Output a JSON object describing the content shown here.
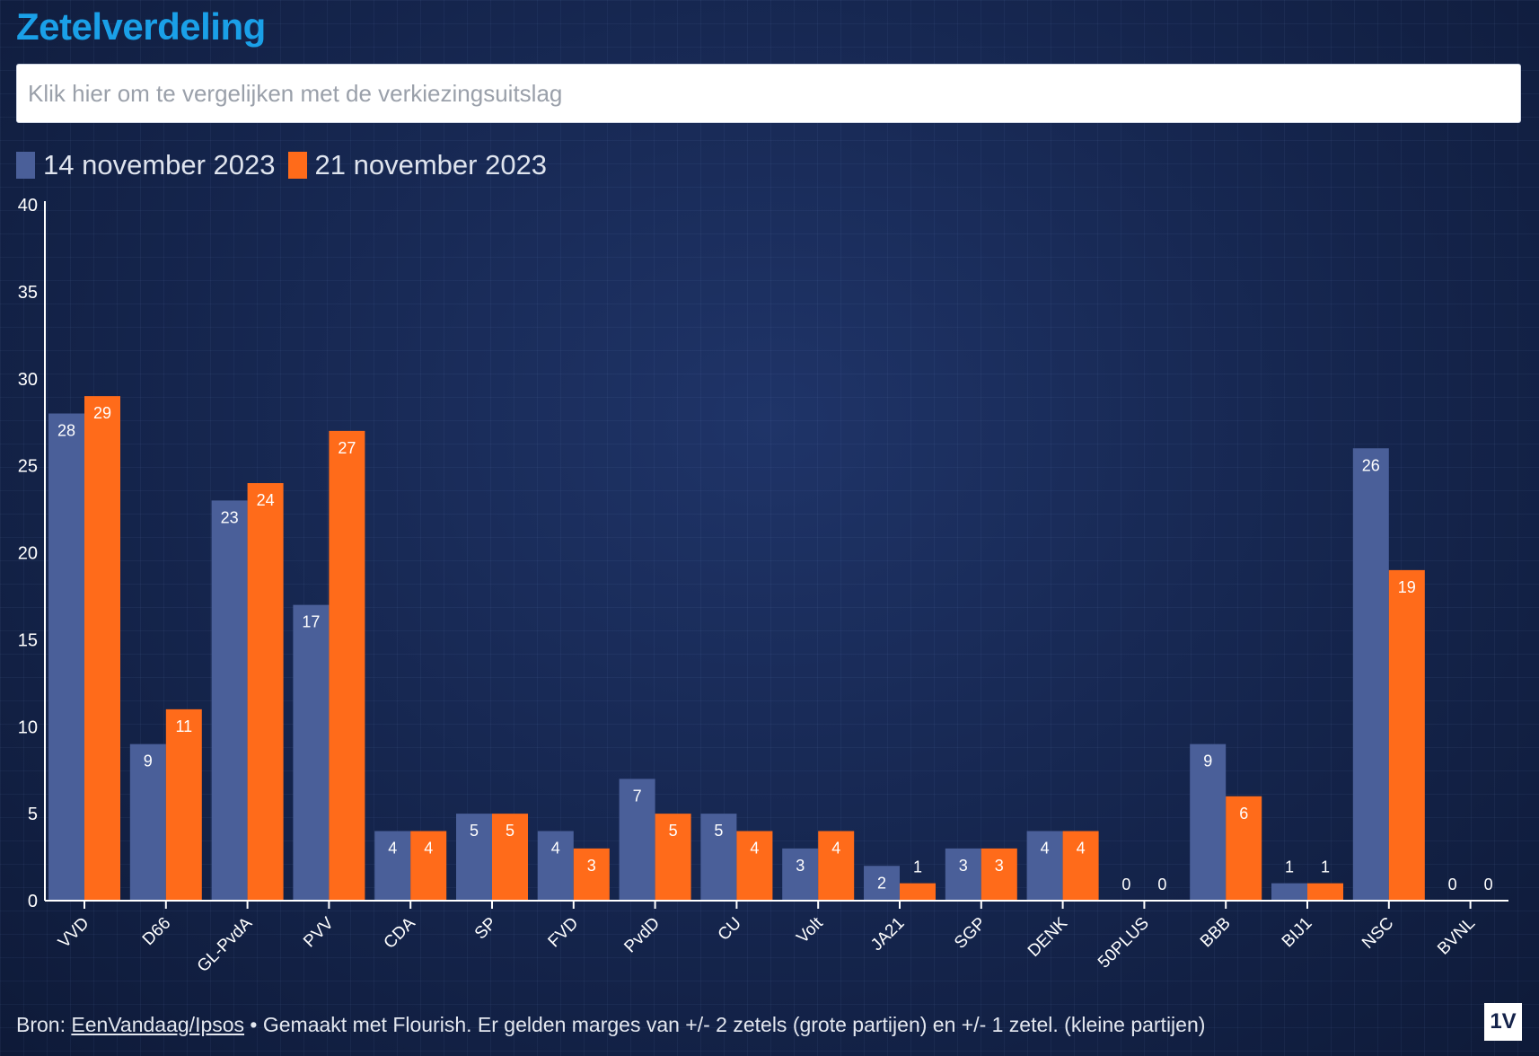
{
  "title": "Zetelverdeling",
  "compare": {
    "label": "Klik hier om te vergelijken met de verkiezingsuitslag"
  },
  "colors": {
    "series1": "#4a5f99",
    "series2": "#ff6b1a",
    "title": "#1aa0e8"
  },
  "chart_data": {
    "type": "bar",
    "categories": [
      "VVD",
      "D66",
      "GL-PvdA",
      "PVV",
      "CDA",
      "SP",
      "FVD",
      "PvdD",
      "CU",
      "Volt",
      "JA21",
      "SGP",
      "DENK",
      "50PLUS",
      "BBB",
      "BIJ1",
      "NSC",
      "BVNL"
    ],
    "series": [
      {
        "name": "14 november 2023",
        "values": [
          28,
          9,
          23,
          17,
          4,
          5,
          4,
          7,
          5,
          3,
          2,
          3,
          4,
          0,
          9,
          1,
          26,
          0
        ]
      },
      {
        "name": "21 november 2023",
        "values": [
          29,
          11,
          24,
          27,
          4,
          5,
          3,
          5,
          4,
          4,
          1,
          3,
          4,
          0,
          6,
          1,
          19,
          0
        ]
      }
    ],
    "ylim": [
      0,
      40
    ],
    "yticks": [
      0,
      5,
      10,
      15,
      20,
      25,
      30,
      35,
      40
    ],
    "legend": "top-left",
    "grid": false
  },
  "footer": {
    "prefix": "Bron: ",
    "source_link": "EenVandaag/Ipsos",
    "rest": " • Gemaakt met Flourish. Er gelden marges van +/- 2 zetels (grote partijen) en +/- 1 zetel. (kleine partijen)"
  },
  "logo": "1V"
}
